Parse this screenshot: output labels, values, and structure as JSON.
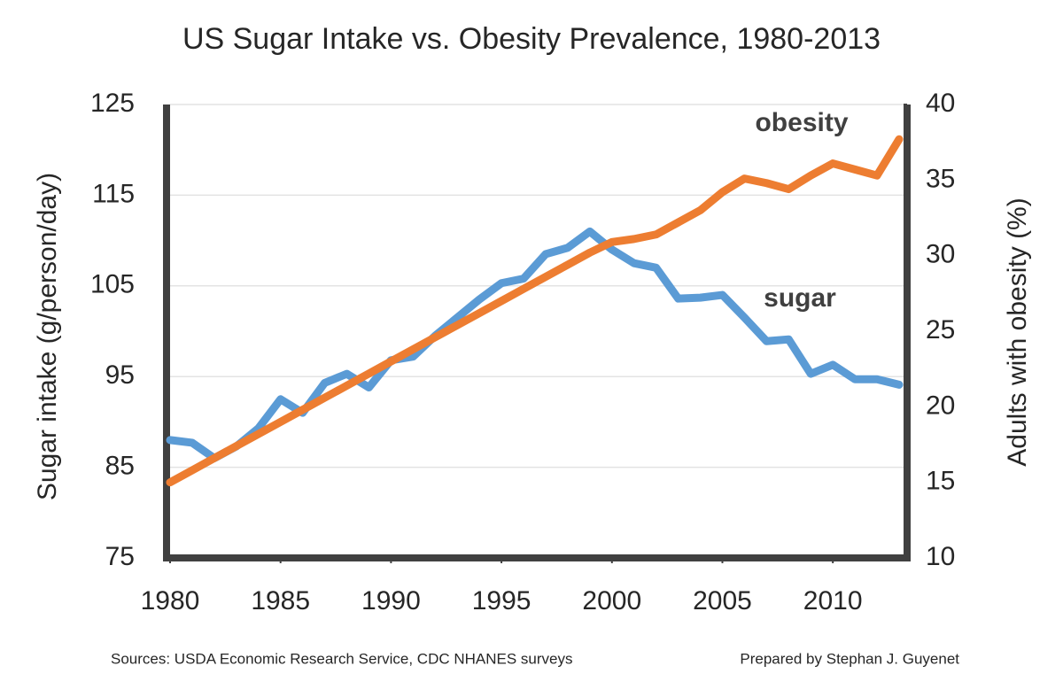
{
  "chart_data": {
    "type": "line",
    "title": "US Sugar Intake vs. Obesity Prevalence, 1980-2013",
    "y_label": "Sugar intake (g/person/day)",
    "y2_label": "Adults with obesity (%)",
    "x": [
      1980,
      1981,
      1982,
      1983,
      1984,
      1985,
      1986,
      1987,
      1988,
      1989,
      1990,
      1991,
      1992,
      1993,
      1994,
      1995,
      1996,
      1997,
      1998,
      1999,
      2000,
      2001,
      2002,
      2003,
      2004,
      2005,
      2006,
      2007,
      2008,
      2009,
      2010,
      2011,
      2012,
      2013
    ],
    "series": [
      {
        "name": "sugar",
        "color": "#5b9bd5",
        "values": [
          88,
          87.7,
          86,
          87.3,
          89.3,
          92.5,
          91,
          94.3,
          95.3,
          93.8,
          96.8,
          97.2,
          99.5,
          101.5,
          103.5,
          105.3,
          105.8,
          108.5,
          109.2,
          111,
          109,
          107.5,
          107,
          103.6,
          103.7,
          104,
          101.5,
          98.9,
          99.1,
          95.3,
          96.3,
          94.7,
          94.7,
          94.1
        ]
      },
      {
        "name": "obesity",
        "color": "#ed7d31",
        "axis": "y2",
        "values": [
          15,
          15.8,
          16.6,
          17.4,
          18.2,
          19,
          19.8,
          20.6,
          21.4,
          22.2,
          23,
          23.8,
          24.6,
          25.4,
          26.2,
          27,
          27.8,
          28.6,
          29.4,
          30.2,
          30.9,
          31.1,
          31.4,
          32.2,
          33,
          34.2,
          35.1,
          34.8,
          34.4,
          35.3,
          36.1,
          35.7,
          35.3,
          37.7
        ]
      }
    ],
    "xlim": [
      1980,
      2013
    ],
    "xticks": [
      1980,
      1985,
      1990,
      1995,
      2000,
      2005,
      2010
    ],
    "ylim": [
      75,
      125
    ],
    "yticks": [
      75,
      85,
      95,
      105,
      115,
      125
    ],
    "y2lim": [
      10,
      40
    ],
    "y2ticks": [
      10,
      15,
      20,
      25,
      30,
      35,
      40
    ],
    "grid": true,
    "source": "Sources: USDA Economic Research Service, CDC NHANES surveys",
    "credit": "Prepared by Stephan J. Guyenet"
  }
}
